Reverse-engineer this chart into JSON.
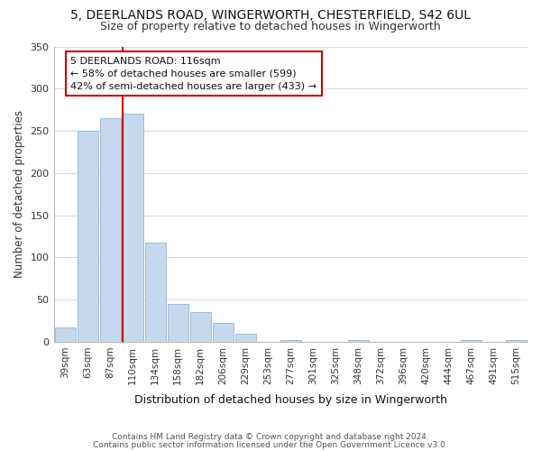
{
  "title": "5, DEERLANDS ROAD, WINGERWORTH, CHESTERFIELD, S42 6UL",
  "subtitle": "Size of property relative to detached houses in Wingerworth",
  "xlabel": "Distribution of detached houses by size in Wingerworth",
  "ylabel": "Number of detached properties",
  "footnote1": "Contains HM Land Registry data © Crown copyright and database right 2024.",
  "footnote2": "Contains public sector information licensed under the Open Government Licence v3.0.",
  "bar_labels": [
    "39sqm",
    "63sqm",
    "87sqm",
    "110sqm",
    "134sqm",
    "158sqm",
    "182sqm",
    "206sqm",
    "229sqm",
    "253sqm",
    "277sqm",
    "301sqm",
    "325sqm",
    "348sqm",
    "372sqm",
    "396sqm",
    "420sqm",
    "444sqm",
    "467sqm",
    "491sqm",
    "515sqm"
  ],
  "bar_values": [
    17,
    250,
    265,
    270,
    117,
    45,
    35,
    22,
    9,
    0,
    2,
    0,
    0,
    2,
    0,
    0,
    0,
    0,
    2,
    0,
    2
  ],
  "bar_color": "#c5d8ed",
  "bar_edge_color": "#a0bcd8",
  "vline_color": "#cc0000",
  "vline_x_index": 3,
  "annotation_line1": "5 DEERLANDS ROAD: 116sqm",
  "annotation_line2": "← 58% of detached houses are smaller (599)",
  "annotation_line3": "42% of semi-detached houses are larger (433) →",
  "annotation_box_color": "#ffffff",
  "annotation_box_edgecolor": "#cc0000",
  "ylim": [
    0,
    350
  ],
  "yticks": [
    0,
    50,
    100,
    150,
    200,
    250,
    300,
    350
  ],
  "background_color": "#ffffff",
  "grid_color": "#d0dce8"
}
